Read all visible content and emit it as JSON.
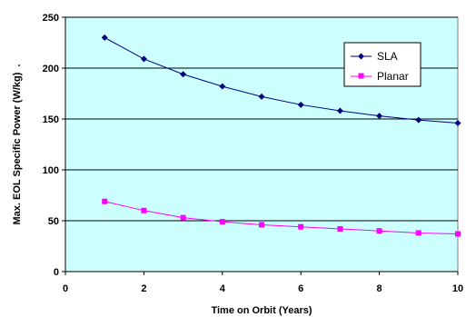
{
  "chart_data": {
    "type": "line",
    "title": "",
    "xlabel": "Time on Orbit (Years)",
    "ylabel": "Max. EOL Specific Power (W/kg)",
    "ylabel_suffix": ".",
    "xlim": [
      0,
      10
    ],
    "ylim": [
      0,
      250
    ],
    "x_ticks": [
      0,
      2,
      4,
      6,
      8,
      10
    ],
    "y_ticks": [
      0,
      50,
      100,
      150,
      200,
      250
    ],
    "grid": "horizontal",
    "legend_position": "right",
    "plot_background": "#ccffff",
    "series": [
      {
        "name": "SLA",
        "color": "#000080",
        "marker": "diamond",
        "x": [
          1,
          2,
          3,
          4,
          5,
          6,
          7,
          8,
          9,
          10
        ],
        "y": [
          230,
          209,
          194,
          182,
          172,
          164,
          158,
          153,
          149,
          146
        ]
      },
      {
        "name": "Planar",
        "color": "#ff00ff",
        "marker": "square",
        "x": [
          1,
          2,
          3,
          4,
          5,
          6,
          7,
          8,
          9,
          10
        ],
        "y": [
          69,
          60,
          53,
          49,
          46,
          44,
          42,
          40,
          38,
          37
        ]
      }
    ]
  }
}
